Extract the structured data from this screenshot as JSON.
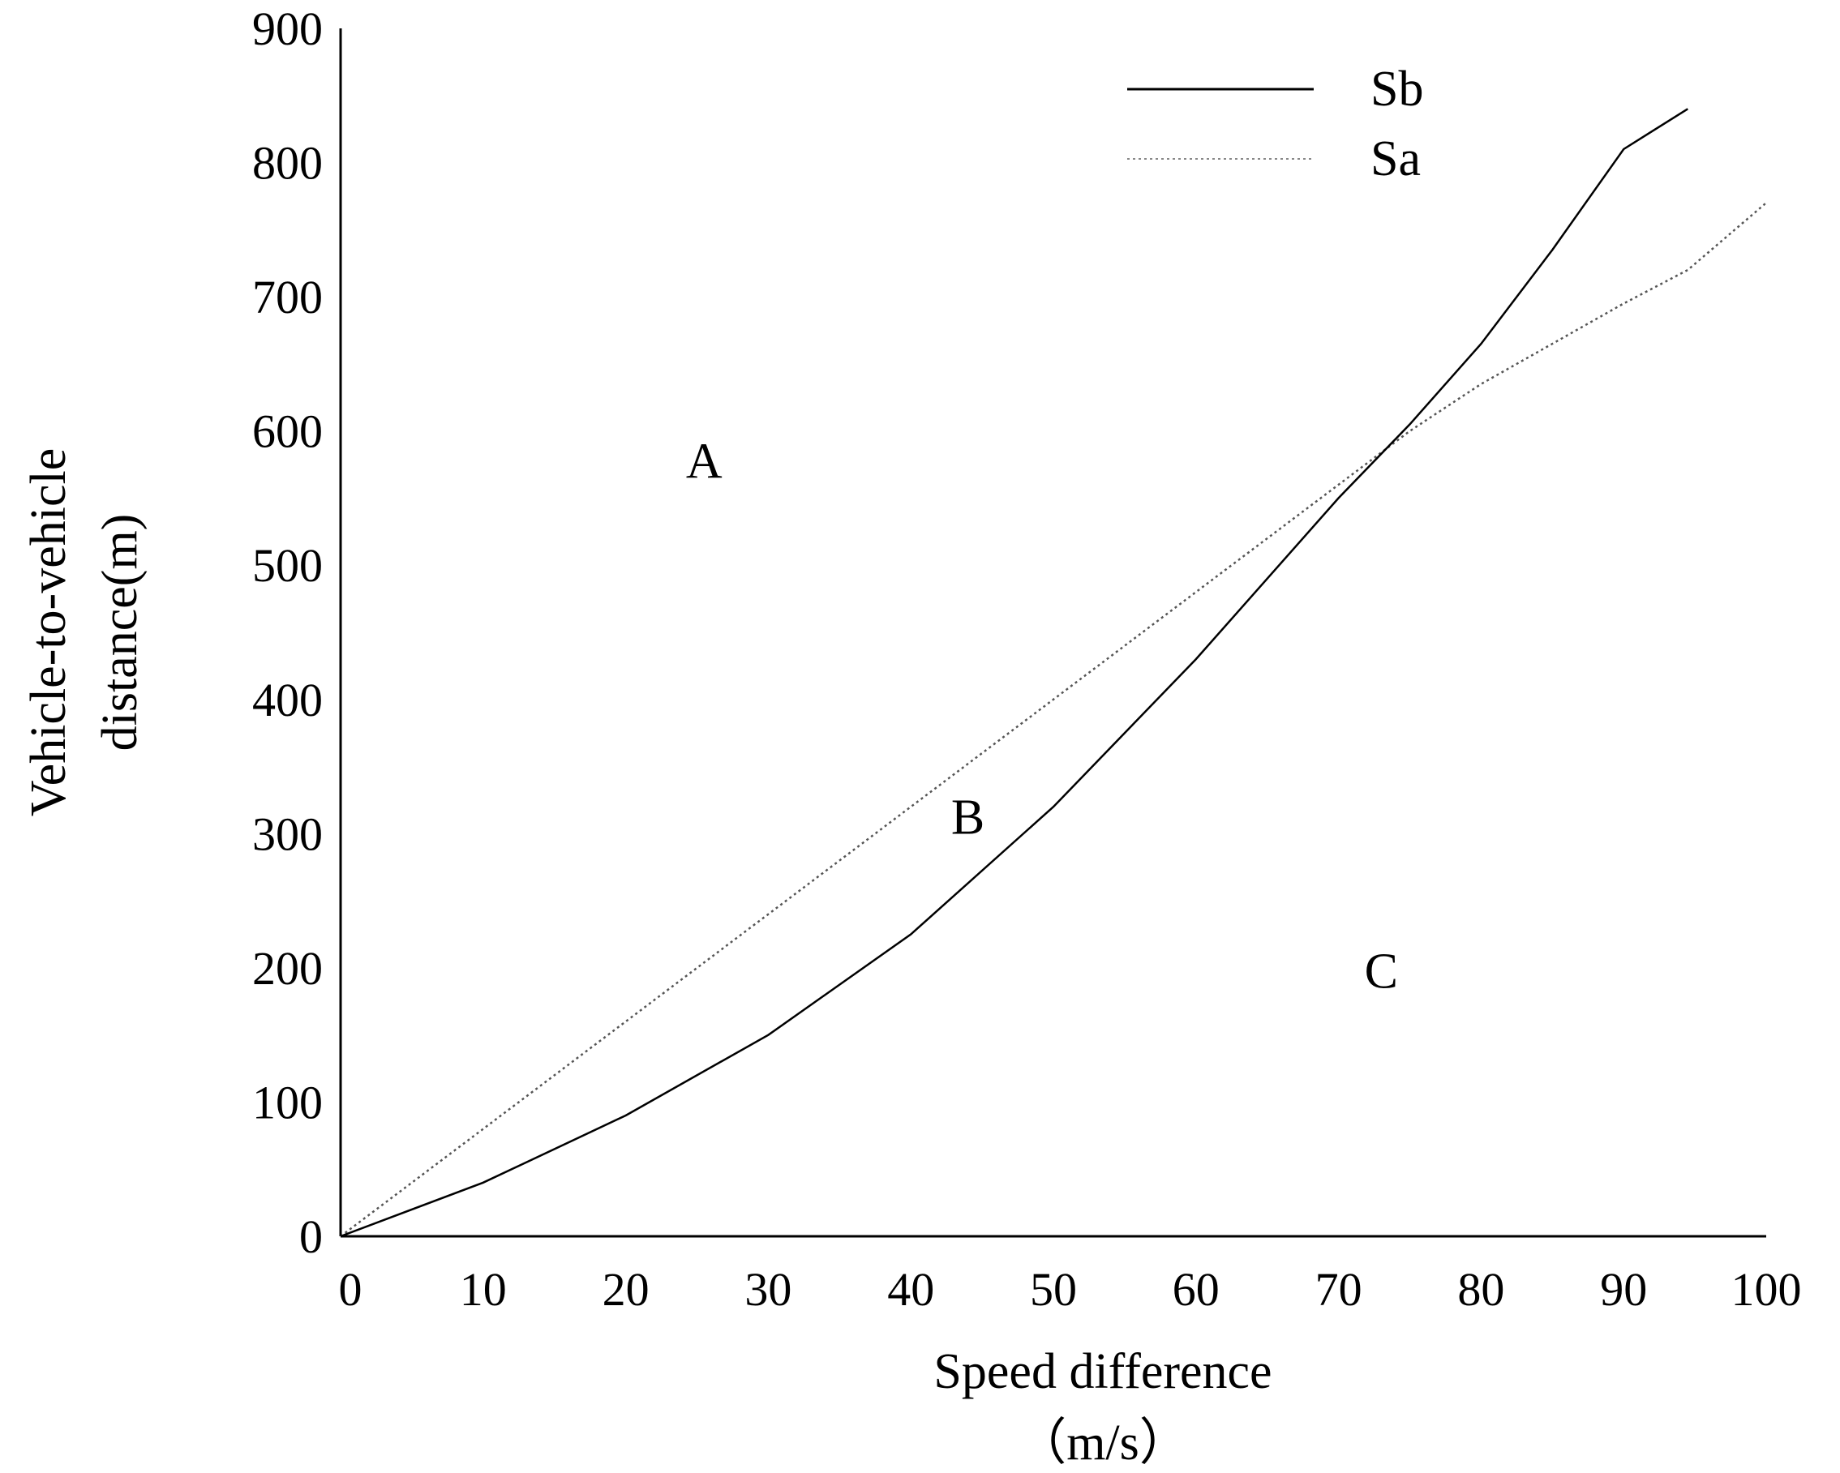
{
  "chart_data": {
    "type": "line",
    "title": "",
    "xlabel_line1": "Speed difference",
    "xlabel_line2": "（m/s）",
    "ylabel_line1": "Vehicle-to-vehicle",
    "ylabel_line2": "distance(m)",
    "xlim": [
      0,
      100
    ],
    "ylim": [
      0,
      900
    ],
    "x_ticks": [
      0,
      10,
      20,
      30,
      40,
      50,
      60,
      70,
      80,
      90,
      100
    ],
    "y_ticks": [
      0,
      100,
      200,
      300,
      400,
      500,
      600,
      700,
      800,
      900
    ],
    "grid": false,
    "legend_position": "top-right",
    "series": [
      {
        "name": "Sb",
        "style": "solid",
        "color": "#000000",
        "x": [
          0,
          10,
          20,
          30,
          40,
          50,
          60,
          70,
          75,
          80,
          85,
          90,
          94.5
        ],
        "y": [
          0,
          40,
          90,
          150,
          225,
          320,
          430,
          550,
          605,
          665,
          735,
          810,
          840
        ]
      },
      {
        "name": "Sa",
        "style": "dotted",
        "color": "#555555",
        "x": [
          0,
          10,
          20,
          30,
          40,
          50,
          60,
          70,
          75,
          80,
          90,
          94.5,
          100
        ],
        "y": [
          0,
          80,
          160,
          240,
          320,
          400,
          480,
          560,
          600,
          635,
          695,
          720,
          770
        ]
      }
    ],
    "annotations": [
      {
        "text": "A",
        "x": 25.5,
        "y": 565
      },
      {
        "text": "B",
        "x": 44,
        "y": 300
      },
      {
        "text": "C",
        "x": 73,
        "y": 185
      }
    ]
  }
}
